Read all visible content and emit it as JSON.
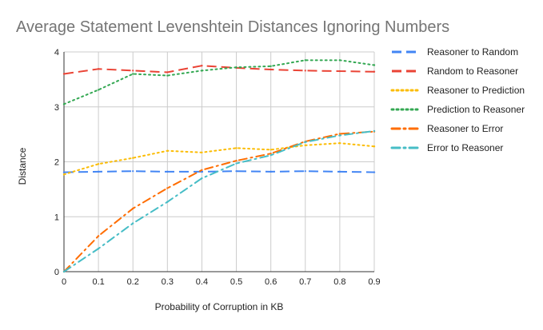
{
  "chart_data": {
    "type": "line",
    "title": "Average Statement Levenshtein Distances Ignoring Numbers",
    "xlabel": "Probability of Corruption in KB",
    "ylabel": "Distance",
    "x": [
      0,
      0.1,
      0.2,
      0.3,
      0.4,
      0.5,
      0.6,
      0.7,
      0.8,
      0.9
    ],
    "x_tick_labels": [
      "0",
      "0.1",
      "0.2",
      "0.3",
      "0.4",
      "0.5",
      "0.6",
      "0.7",
      "0.8",
      "0.9"
    ],
    "y_ticks": [
      "0",
      "1",
      "2",
      "3",
      "4"
    ],
    "xlim": [
      0,
      0.9
    ],
    "ylim": [
      0,
      4
    ],
    "grid": true,
    "legend_position": "right",
    "series": [
      {
        "name": "Reasoner to Random",
        "color": "#4285F4",
        "dash": "dashed",
        "values": [
          1.81,
          1.82,
          1.83,
          1.82,
          1.82,
          1.83,
          1.82,
          1.83,
          1.82,
          1.81
        ]
      },
      {
        "name": "Random to Reasoner",
        "color": "#EA4335",
        "dash": "dashed",
        "values": [
          3.6,
          3.69,
          3.66,
          3.63,
          3.75,
          3.71,
          3.68,
          3.66,
          3.65,
          3.64
        ]
      },
      {
        "name": "Reasoner to Prediction",
        "color": "#FBBC04",
        "dash": "dotted",
        "values": [
          1.77,
          1.96,
          2.07,
          2.2,
          2.17,
          2.25,
          2.22,
          2.3,
          2.34,
          2.28
        ]
      },
      {
        "name": "Prediction to Reasoner",
        "color": "#34A853",
        "dash": "dotted",
        "values": [
          3.05,
          3.31,
          3.6,
          3.57,
          3.66,
          3.72,
          3.74,
          3.85,
          3.85,
          3.76
        ]
      },
      {
        "name": "Reasoner to Error",
        "color": "#FF6D01",
        "dash": "dashdot",
        "values": [
          0.0,
          0.65,
          1.15,
          1.52,
          1.85,
          2.02,
          2.15,
          2.37,
          2.51,
          2.55
        ]
      },
      {
        "name": "Error to Reasoner",
        "color": "#46BDC6",
        "dash": "dashdot",
        "values": [
          0.0,
          0.42,
          0.88,
          1.27,
          1.7,
          1.97,
          2.12,
          2.36,
          2.48,
          2.56
        ]
      }
    ]
  }
}
